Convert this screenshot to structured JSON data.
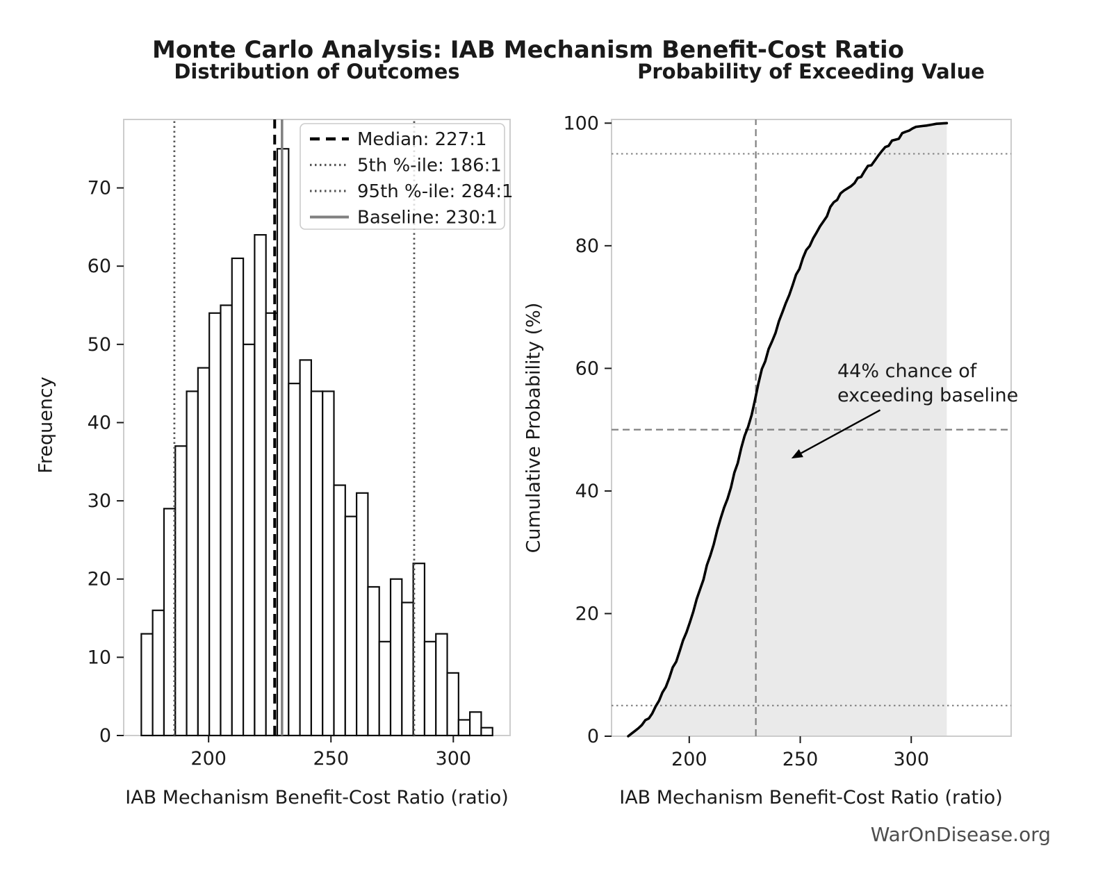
{
  "figure": {
    "title": "Monte Carlo Analysis: IAB Mechanism Benefit-Cost Ratio",
    "watermark": "WarOnDisease.org"
  },
  "colors": {
    "background": "#ffffff",
    "bar_fill": "#ffffff",
    "bar_edge": "#0d0d0d",
    "median_line": "#000000",
    "percentile_line": "#555555",
    "baseline_line": "#808080",
    "cdf_line": "#000000",
    "cdf_fill": "#eaeaea",
    "ref_dotted": "#888888",
    "ref_dashed": "#808080",
    "spine": "#cccccc",
    "tick": "#1a1a1a",
    "text": "#1a1a1a",
    "watermark_text": "#4d4d4d",
    "legend_border": "#cccccc"
  },
  "chart_data": [
    {
      "type": "bar",
      "subtype": "histogram",
      "title": "Distribution of Outcomes",
      "xlabel": "IAB Mechanism Benefit-Cost Ratio (ratio)",
      "ylabel": "Frequency",
      "n_samples": 1000,
      "bin_start": 172.5,
      "bin_width": 4.63,
      "counts": [
        13,
        16,
        29,
        37,
        44,
        47,
        54,
        55,
        61,
        50,
        64,
        54,
        75,
        45,
        48,
        44,
        44,
        32,
        28,
        31,
        19,
        12,
        20,
        17,
        22,
        12,
        13,
        8,
        2,
        3,
        1
      ],
      "xticks": [
        200,
        250,
        300
      ],
      "yticks": [
        0,
        10,
        20,
        30,
        40,
        50,
        60,
        70
      ],
      "xlim": [
        165.3,
        323.2
      ],
      "ylim": [
        0,
        78.75
      ],
      "grid": false,
      "legend_position": "upper right",
      "ref_lines": [
        {
          "label": "Median: 227:1",
          "value": 227,
          "style": "dashed",
          "color": "#000000",
          "width": 4
        },
        {
          "label": "5th %-ile: 186:1",
          "value": 186,
          "style": "dotted",
          "color": "#555555",
          "width": 2.8
        },
        {
          "label": "95th %-ile: 284:1",
          "value": 284,
          "style": "dotted",
          "color": "#555555",
          "width": 2.8
        },
        {
          "label": "Baseline: 230:1",
          "value": 230,
          "style": "solid",
          "color": "#808080",
          "width": 3.5
        }
      ]
    },
    {
      "type": "area",
      "subtype": "empirical-cdf",
      "title": "Probability of Exceeding Value",
      "xlabel": "IAB Mechanism Benefit-Cost Ratio (ratio)",
      "ylabel": "Cumulative Probability (%)",
      "x": [
        172.5,
        177.1,
        181.8,
        186.4,
        191.0,
        195.7,
        200.3,
        204.9,
        209.5,
        214.2,
        218.8,
        223.4,
        228.1,
        232.7,
        237.3,
        242.0,
        246.6,
        251.2,
        255.8,
        260.5,
        265.1,
        269.7,
        274.4,
        279.0,
        283.6,
        288.3,
        292.9,
        297.5,
        302.1,
        306.8,
        311.4,
        316.0
      ],
      "y": [
        0,
        1.3,
        2.9,
        5.8,
        9.5,
        13.9,
        18.6,
        24.0,
        29.5,
        35.6,
        40.6,
        47.0,
        52.4,
        59.9,
        64.4,
        69.2,
        73.6,
        78.0,
        81.2,
        84.0,
        87.1,
        89.0,
        90.2,
        92.2,
        93.9,
        96.1,
        97.3,
        98.6,
        99.4,
        99.6,
        99.9,
        100
      ],
      "xticks": [
        200,
        250,
        300
      ],
      "yticks": [
        0,
        20,
        40,
        60,
        80,
        100
      ],
      "xlim": [
        165,
        345
      ],
      "ylim": [
        0,
        100.6
      ],
      "grid": false,
      "h_lines": [
        {
          "value": 5,
          "style": "dotted",
          "color": "#888888"
        },
        {
          "value": 95,
          "style": "dotted",
          "color": "#888888"
        },
        {
          "value": 50,
          "style": "dashed",
          "color": "#808080"
        }
      ],
      "v_lines": [
        {
          "value": 230,
          "style": "dashed",
          "color": "#808080"
        }
      ],
      "annotation": {
        "line1": "44% chance of",
        "line2": "exceeding baseline",
        "arrow_tail": [
          286,
          53.2
        ],
        "arrow_tip": [
          246,
          45.3
        ]
      }
    }
  ]
}
